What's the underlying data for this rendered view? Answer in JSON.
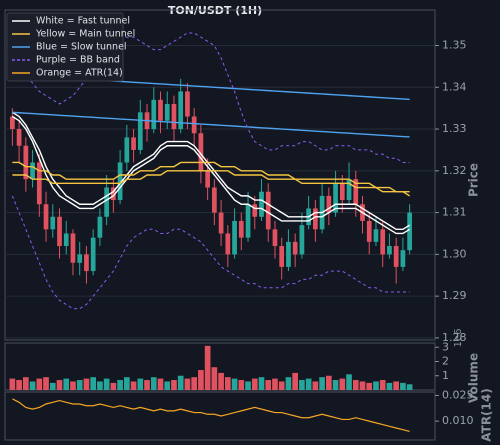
{
  "chart_data": {
    "type": "candlestick",
    "title": "TON/USDT (1H)",
    "y_label": "Price",
    "grid": true,
    "ylim": [
      1.2795,
      1.3585
    ],
    "yticks": [
      {
        "value": 1.28,
        "label": "1.28"
      },
      {
        "value": 1.29,
        "label": "1.29"
      },
      {
        "value": 1.3,
        "label": "1.30"
      },
      {
        "value": 1.31,
        "label": "1.31"
      },
      {
        "value": 1.32,
        "label": "1.32"
      },
      {
        "value": 1.33,
        "label": "1.33"
      },
      {
        "value": 1.34,
        "label": "1.34"
      },
      {
        "value": 1.35,
        "label": "1.35"
      }
    ],
    "up_color": "#26a69a",
    "down_color": "#e0525f",
    "ohlc": [
      [
        1.333,
        1.335,
        1.326,
        1.33
      ],
      [
        1.33,
        1.332,
        1.322,
        1.326
      ],
      [
        1.326,
        1.328,
        1.315,
        1.318
      ],
      [
        1.318,
        1.325,
        1.316,
        1.322
      ],
      [
        1.322,
        1.324,
        1.309,
        1.312
      ],
      [
        1.312,
        1.315,
        1.303,
        1.306
      ],
      [
        1.306,
        1.312,
        1.304,
        1.309
      ],
      [
        1.309,
        1.311,
        1.299,
        1.302
      ],
      [
        1.302,
        1.308,
        1.3,
        1.305
      ],
      [
        1.305,
        1.306,
        1.295,
        1.298
      ],
      [
        1.298,
        1.303,
        1.295,
        1.3
      ],
      [
        1.3,
        1.302,
        1.293,
        1.296
      ],
      [
        1.296,
        1.306,
        1.295,
        1.304
      ],
      [
        1.304,
        1.311,
        1.302,
        1.309
      ],
      [
        1.309,
        1.319,
        1.307,
        1.316
      ],
      [
        1.316,
        1.318,
        1.31,
        1.313
      ],
      [
        1.313,
        1.325,
        1.312,
        1.322
      ],
      [
        1.322,
        1.331,
        1.32,
        1.328
      ],
      [
        1.328,
        1.33,
        1.322,
        1.325
      ],
      [
        1.325,
        1.337,
        1.324,
        1.334
      ],
      [
        1.334,
        1.336,
        1.327,
        1.33
      ],
      [
        1.33,
        1.34,
        1.329,
        1.337
      ],
      [
        1.337,
        1.339,
        1.329,
        1.332
      ],
      [
        1.332,
        1.339,
        1.33,
        1.336
      ],
      [
        1.336,
        1.338,
        1.327,
        1.33
      ],
      [
        1.33,
        1.342,
        1.329,
        1.339
      ],
      [
        1.339,
        1.341,
        1.33,
        1.333
      ],
      [
        1.333,
        1.335,
        1.326,
        1.329
      ],
      [
        1.329,
        1.331,
        1.317,
        1.32
      ],
      [
        1.32,
        1.323,
        1.313,
        1.316
      ],
      [
        1.316,
        1.318,
        1.307,
        1.31
      ],
      [
        1.31,
        1.313,
        1.302,
        1.305
      ],
      [
        1.305,
        1.307,
        1.297,
        1.3
      ],
      [
        1.3,
        1.311,
        1.299,
        1.308
      ],
      [
        1.308,
        1.31,
        1.301,
        1.304
      ],
      [
        1.304,
        1.315,
        1.303,
        1.312
      ],
      [
        1.312,
        1.314,
        1.306,
        1.309
      ],
      [
        1.309,
        1.318,
        1.308,
        1.315
      ],
      [
        1.315,
        1.317,
        1.303,
        1.306
      ],
      [
        1.306,
        1.308,
        1.299,
        1.302
      ],
      [
        1.302,
        1.304,
        1.294,
        1.297
      ],
      [
        1.297,
        1.306,
        1.296,
        1.303
      ],
      [
        1.303,
        1.305,
        1.297,
        1.3
      ],
      [
        1.3,
        1.31,
        1.299,
        1.307
      ],
      [
        1.307,
        1.314,
        1.306,
        1.311
      ],
      [
        1.311,
        1.313,
        1.303,
        1.306
      ],
      [
        1.306,
        1.317,
        1.305,
        1.314
      ],
      [
        1.314,
        1.316,
        1.307,
        1.31
      ],
      [
        1.31,
        1.32,
        1.309,
        1.317
      ],
      [
        1.317,
        1.319,
        1.31,
        1.313
      ],
      [
        1.313,
        1.322,
        1.312,
        1.318
      ],
      [
        1.318,
        1.32,
        1.309,
        1.312
      ],
      [
        1.312,
        1.314,
        1.305,
        1.308
      ],
      [
        1.308,
        1.31,
        1.3,
        1.303
      ],
      [
        1.303,
        1.309,
        1.302,
        1.306
      ],
      [
        1.306,
        1.308,
        1.297,
        1.3
      ],
      [
        1.3,
        1.305,
        1.299,
        1.302
      ],
      [
        1.302,
        1.304,
        1.293,
        1.297
      ],
      [
        1.297,
        1.304,
        1.296,
        1.301
      ],
      [
        1.301,
        1.312,
        1.3,
        1.31
      ]
    ],
    "overlays": [
      {
        "name": "White = Fast tunnel",
        "color": "#ffffff",
        "dashed": false,
        "lines": [
          [
            1.334,
            1.333,
            1.331,
            1.328,
            1.325,
            1.321,
            1.318,
            1.316,
            1.314,
            1.313,
            1.312,
            1.312,
            1.312,
            1.313,
            1.314,
            1.315,
            1.317,
            1.319,
            1.321,
            1.322,
            1.323,
            1.324,
            1.326,
            1.327,
            1.327,
            1.327,
            1.327,
            1.326,
            1.324,
            1.322,
            1.32,
            1.318,
            1.316,
            1.315,
            1.314,
            1.314,
            1.313,
            1.313,
            1.312,
            1.311,
            1.31,
            1.309,
            1.309,
            1.309,
            1.309,
            1.31,
            1.31,
            1.311,
            1.312,
            1.312,
            1.312,
            1.312,
            1.311,
            1.31,
            1.309,
            1.308,
            1.307,
            1.306,
            1.306,
            1.307
          ],
          [
            1.333,
            1.332,
            1.33,
            1.327,
            1.323,
            1.319,
            1.316,
            1.314,
            1.313,
            1.312,
            1.311,
            1.311,
            1.311,
            1.312,
            1.313,
            1.314,
            1.316,
            1.318,
            1.32,
            1.321,
            1.322,
            1.323,
            1.325,
            1.326,
            1.326,
            1.326,
            1.326,
            1.325,
            1.323,
            1.321,
            1.319,
            1.317,
            1.315,
            1.313,
            1.312,
            1.312,
            1.311,
            1.311,
            1.31,
            1.309,
            1.308,
            1.308,
            1.308,
            1.308,
            1.308,
            1.309,
            1.309,
            1.31,
            1.311,
            1.311,
            1.311,
            1.311,
            1.31,
            1.309,
            1.308,
            1.307,
            1.306,
            1.305,
            1.305,
            1.306
          ]
        ]
      },
      {
        "name": "Yellow = Main tunnel",
        "color": "#f5c542",
        "dashed": false,
        "lines": [
          [
            1.322,
            1.322,
            1.321,
            1.321,
            1.32,
            1.32,
            1.319,
            1.319,
            1.318,
            1.318,
            1.318,
            1.318,
            1.318,
            1.318,
            1.318,
            1.318,
            1.319,
            1.319,
            1.319,
            1.32,
            1.32,
            1.32,
            1.321,
            1.321,
            1.321,
            1.322,
            1.322,
            1.322,
            1.322,
            1.322,
            1.322,
            1.321,
            1.321,
            1.321,
            1.32,
            1.32,
            1.32,
            1.32,
            1.319,
            1.319,
            1.319,
            1.319,
            1.318,
            1.318,
            1.318,
            1.318,
            1.318,
            1.318,
            1.318,
            1.318,
            1.318,
            1.317,
            1.317,
            1.317,
            1.316,
            1.316,
            1.316,
            1.315,
            1.315,
            1.315
          ],
          [
            1.319,
            1.319,
            1.319,
            1.318,
            1.318,
            1.318,
            1.317,
            1.317,
            1.317,
            1.317,
            1.317,
            1.317,
            1.317,
            1.317,
            1.317,
            1.317,
            1.317,
            1.318,
            1.318,
            1.318,
            1.319,
            1.319,
            1.319,
            1.32,
            1.32,
            1.32,
            1.32,
            1.32,
            1.32,
            1.32,
            1.32,
            1.32,
            1.32,
            1.319,
            1.319,
            1.319,
            1.319,
            1.319,
            1.318,
            1.318,
            1.318,
            1.318,
            1.318,
            1.317,
            1.317,
            1.317,
            1.317,
            1.317,
            1.317,
            1.317,
            1.317,
            1.316,
            1.316,
            1.316,
            1.316,
            1.315,
            1.315,
            1.315,
            1.315,
            1.314
          ]
        ]
      },
      {
        "name": "Blue = Slow tunnel",
        "color": "#4fa3f0",
        "dashed": false,
        "lines": [
          [
            1.343,
            1.3429,
            1.3428,
            1.3427,
            1.3426,
            1.3425,
            1.3424,
            1.3423,
            1.3422,
            1.3421,
            1.342,
            1.3419,
            1.3418,
            1.3417,
            1.3416,
            1.3415,
            1.3414,
            1.3413,
            1.3412,
            1.3411,
            1.341,
            1.3409,
            1.3408,
            1.3407,
            1.3406,
            1.3405,
            1.3404,
            1.3403,
            1.3402,
            1.3401,
            1.34,
            1.3399,
            1.3398,
            1.3397,
            1.3396,
            1.3395,
            1.3394,
            1.3393,
            1.3392,
            1.3391,
            1.339,
            1.3389,
            1.3388,
            1.3387,
            1.3386,
            1.3385,
            1.3384,
            1.3383,
            1.3382,
            1.3381,
            1.338,
            1.3379,
            1.3378,
            1.3377,
            1.3376,
            1.3375,
            1.3374,
            1.3373,
            1.3372,
            1.3371
          ],
          [
            1.334,
            1.3339,
            1.3338,
            1.3337,
            1.3336,
            1.3335,
            1.3334,
            1.3333,
            1.3332,
            1.3331,
            1.333,
            1.3329,
            1.3328,
            1.3327,
            1.3326,
            1.3325,
            1.3324,
            1.3323,
            1.3322,
            1.3321,
            1.332,
            1.3319,
            1.3318,
            1.3317,
            1.3316,
            1.3315,
            1.3314,
            1.3313,
            1.3312,
            1.3311,
            1.331,
            1.3309,
            1.3308,
            1.3307,
            1.3306,
            1.3305,
            1.3304,
            1.3303,
            1.3302,
            1.3301,
            1.33,
            1.3299,
            1.3298,
            1.3297,
            1.3296,
            1.3295,
            1.3294,
            1.3293,
            1.3292,
            1.3291,
            1.329,
            1.3289,
            1.3288,
            1.3287,
            1.3286,
            1.3285,
            1.3284,
            1.3283,
            1.3282,
            1.3281
          ]
        ]
      },
      {
        "name": "Purple = BB band",
        "color": "#8b5cf6",
        "dashed": true,
        "lines": [
          [
            1.345,
            1.344,
            1.343,
            1.341,
            1.339,
            1.338,
            1.337,
            1.336,
            1.337,
            1.338,
            1.34,
            1.342,
            1.344,
            1.346,
            1.348,
            1.35,
            1.351,
            1.352,
            1.352,
            1.351,
            1.35,
            1.349,
            1.349,
            1.35,
            1.351,
            1.352,
            1.353,
            1.353,
            1.352,
            1.351,
            1.35,
            1.347,
            1.343,
            1.339,
            1.334,
            1.33,
            1.327,
            1.326,
            1.325,
            1.325,
            1.326,
            1.326,
            1.326,
            1.327,
            1.327,
            1.326,
            1.325,
            1.325,
            1.326,
            1.326,
            1.326,
            1.325,
            1.325,
            1.325,
            1.324,
            1.324,
            1.323,
            1.323,
            1.322,
            1.322
          ],
          [
            1.314,
            1.31,
            1.306,
            1.302,
            1.298,
            1.294,
            1.291,
            1.289,
            1.288,
            1.287,
            1.287,
            1.288,
            1.29,
            1.292,
            1.294,
            1.296,
            1.299,
            1.302,
            1.304,
            1.305,
            1.306,
            1.306,
            1.305,
            1.305,
            1.306,
            1.306,
            1.305,
            1.304,
            1.303,
            1.301,
            1.299,
            1.297,
            1.296,
            1.295,
            1.294,
            1.293,
            1.293,
            1.292,
            1.292,
            1.292,
            1.292,
            1.293,
            1.293,
            1.294,
            1.294,
            1.295,
            1.295,
            1.296,
            1.296,
            1.296,
            1.295,
            1.294,
            1.293,
            1.292,
            1.292,
            1.291,
            1.291,
            1.291,
            1.291,
            1.291
          ]
        ]
      }
    ],
    "volume": {
      "y_label": "Volume",
      "offset_label": "1e6",
      "ylim": [
        0,
        3.3
      ],
      "yticks": [
        1,
        2,
        3
      ],
      "values": [
        0.8,
        0.7,
        0.9,
        0.6,
        0.8,
        0.9,
        0.5,
        0.7,
        0.8,
        0.6,
        0.7,
        0.8,
        0.9,
        0.6,
        0.8,
        0.5,
        0.7,
        0.9,
        0.6,
        0.8,
        0.7,
        0.9,
        0.8,
        0.6,
        0.7,
        1.0,
        0.8,
        0.9,
        1.4,
        3.1,
        1.6,
        1.2,
        0.9,
        0.8,
        0.7,
        0.6,
        0.8,
        0.9,
        0.7,
        0.8,
        0.6,
        0.9,
        1.2,
        0.7,
        0.8,
        0.6,
        0.9,
        1.0,
        0.7,
        0.8,
        1.1,
        0.7,
        0.6,
        0.5,
        0.6,
        0.7,
        0.5,
        0.6,
        0.5,
        0.4
      ]
    },
    "atr": {
      "name": "Orange = ATR(14)",
      "y_label": "ATR(14)",
      "color": "#f5a623",
      "ylim": [
        -0.001,
        0.027
      ],
      "yticks": [
        {
          "value": 0.01,
          "label": "0.010"
        },
        0.025
      ],
      "values": [
        0.023,
        0.021,
        0.018,
        0.017,
        0.018,
        0.02,
        0.021,
        0.022,
        0.021,
        0.02,
        0.02,
        0.019,
        0.019,
        0.02,
        0.019,
        0.018,
        0.019,
        0.018,
        0.017,
        0.018,
        0.017,
        0.016,
        0.017,
        0.016,
        0.016,
        0.017,
        0.016,
        0.015,
        0.015,
        0.014,
        0.014,
        0.013,
        0.014,
        0.015,
        0.016,
        0.017,
        0.018,
        0.017,
        0.016,
        0.015,
        0.015,
        0.014,
        0.013,
        0.012,
        0.012,
        0.013,
        0.014,
        0.013,
        0.012,
        0.011,
        0.011,
        0.012,
        0.011,
        0.01,
        0.009,
        0.008,
        0.007,
        0.006,
        0.005,
        0.004
      ]
    }
  }
}
